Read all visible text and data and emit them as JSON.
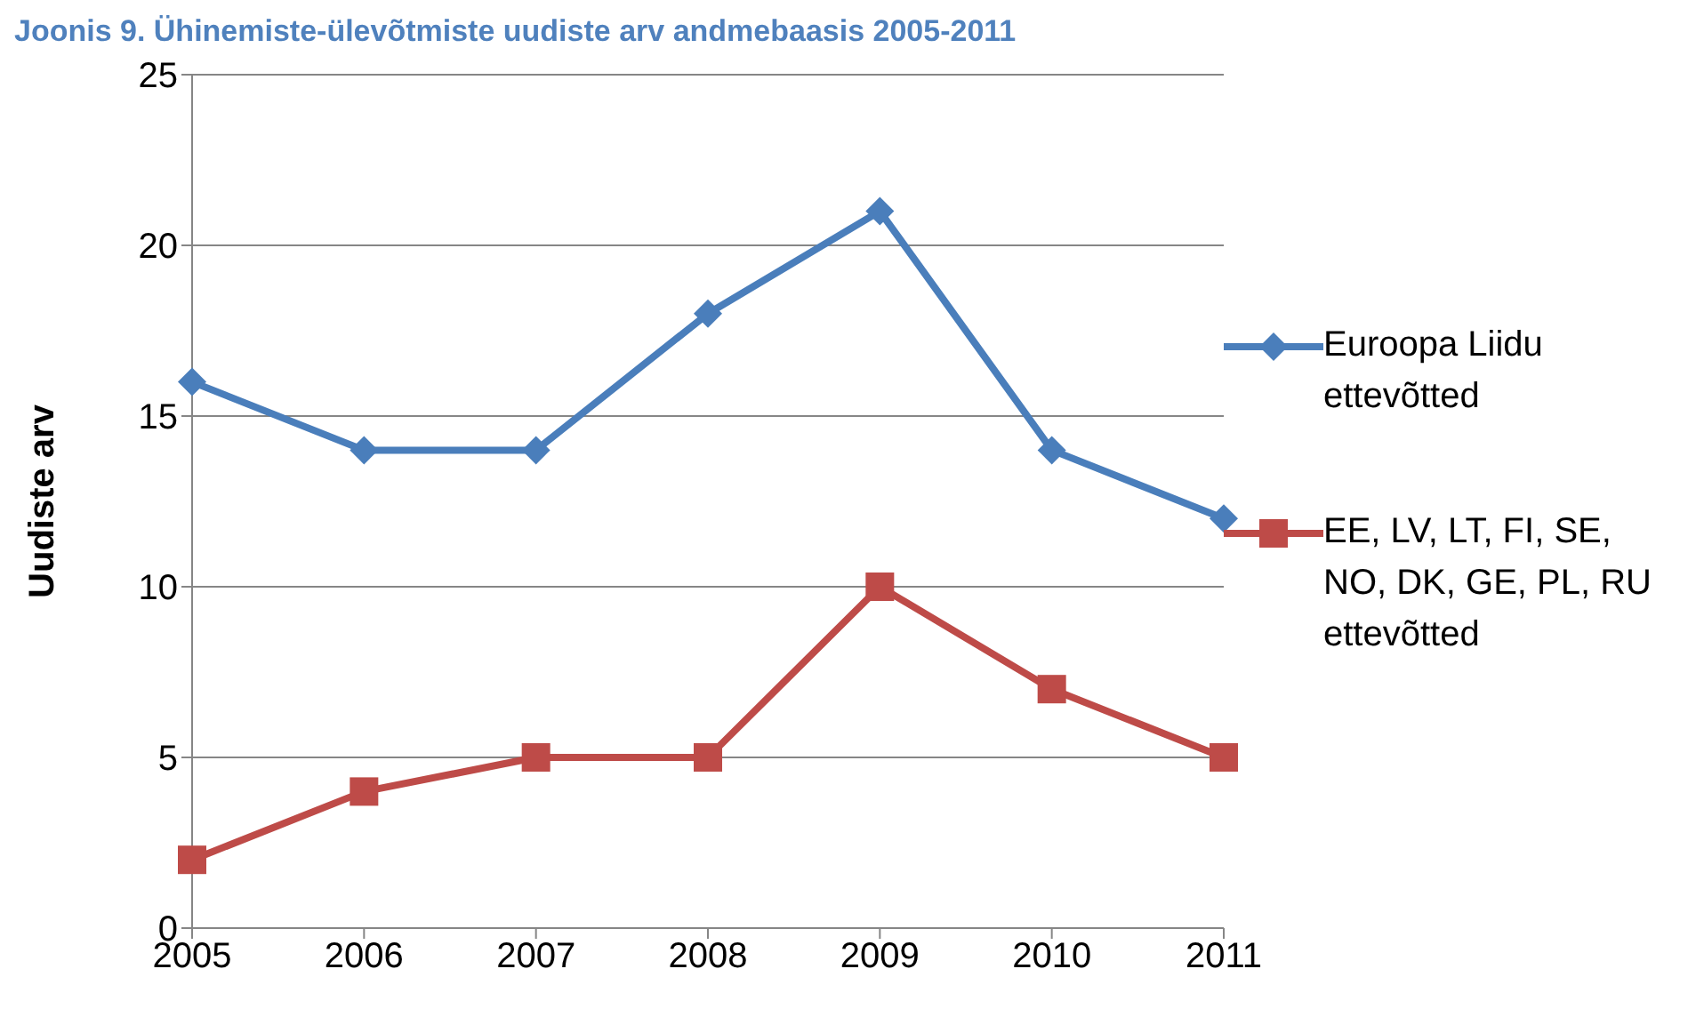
{
  "chart_data": {
    "type": "line",
    "title": "Joonis 9. Ühinemiste-ülevõtmiste uudiste arv andmebaasis 2005-2011",
    "ylabel": "Uudiste arv",
    "categories": [
      "2005",
      "2006",
      "2007",
      "2008",
      "2009",
      "2010",
      "2011"
    ],
    "series": [
      {
        "name": "Euroopa Liidu ettevõtted",
        "color": "#4a7ebb",
        "marker": "diamond",
        "values": [
          16,
          14,
          14,
          18,
          21,
          14,
          12
        ]
      },
      {
        "name": "EE, LV, LT, FI, SE, NO, DK, GE, PL, RU ettevõtted",
        "color": "#be4b48",
        "marker": "square",
        "values": [
          2,
          4,
          5,
          5,
          10,
          7,
          5
        ]
      }
    ],
    "ylim": [
      0,
      25
    ],
    "yticks": [
      0,
      5,
      10,
      15,
      20,
      25
    ],
    "grid": "y",
    "legend": "right",
    "line_style": "solid"
  }
}
